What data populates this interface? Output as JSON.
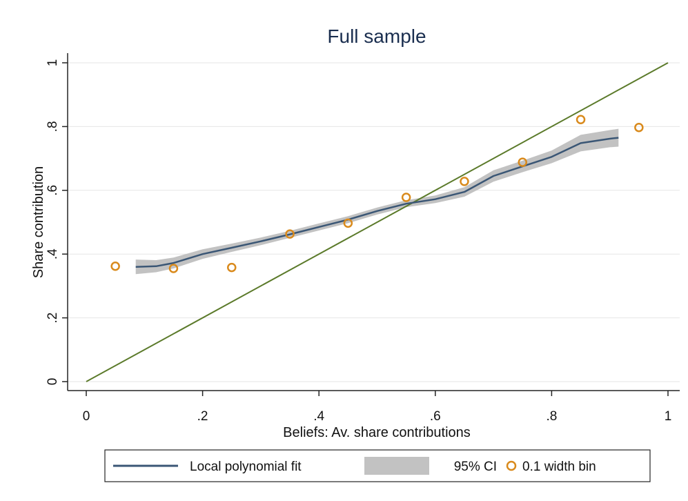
{
  "figure_label": "g",
  "chart_data": {
    "type": "line",
    "title": "Full sample",
    "xlabel": "Beliefs: Av. share contributions",
    "ylabel": "Share contribution",
    "xlim": [
      0,
      1
    ],
    "ylim": [
      0,
      1
    ],
    "xticks": [
      0,
      0.2,
      0.4,
      0.6,
      0.8,
      1
    ],
    "xtick_labels": [
      "0",
      ".2",
      ".4",
      ".6",
      ".8",
      "1"
    ],
    "yticks": [
      0,
      0.2,
      0.4,
      0.6,
      0.8,
      1
    ],
    "ytick_labels": [
      "0",
      ".2",
      ".4",
      ".6",
      ".8",
      "1"
    ],
    "grid": "horizontal",
    "legend_position": "bottom",
    "colors": {
      "fit": "#3a5675",
      "ci": "#c2c2c2",
      "bins": "#d98a1c",
      "diagonal": "#5b7a2a"
    },
    "series": [
      {
        "name": "Local polynomial fit",
        "kind": "line",
        "x": [
          0.085,
          0.12,
          0.15,
          0.2,
          0.25,
          0.3,
          0.35,
          0.4,
          0.45,
          0.5,
          0.55,
          0.6,
          0.65,
          0.7,
          0.75,
          0.8,
          0.85,
          0.9,
          0.915
        ],
        "y": [
          0.36,
          0.362,
          0.372,
          0.4,
          0.42,
          0.44,
          0.462,
          0.485,
          0.508,
          0.535,
          0.558,
          0.572,
          0.595,
          0.645,
          0.675,
          0.705,
          0.748,
          0.762,
          0.765
        ]
      },
      {
        "name": "95% CI",
        "kind": "band",
        "x": [
          0.085,
          0.12,
          0.15,
          0.2,
          0.25,
          0.3,
          0.35,
          0.4,
          0.45,
          0.5,
          0.55,
          0.6,
          0.65,
          0.7,
          0.75,
          0.8,
          0.85,
          0.9,
          0.915
        ],
        "lower": [
          0.337,
          0.343,
          0.355,
          0.385,
          0.407,
          0.428,
          0.451,
          0.474,
          0.497,
          0.524,
          0.547,
          0.56,
          0.58,
          0.627,
          0.657,
          0.685,
          0.722,
          0.735,
          0.737
        ],
        "upper": [
          0.383,
          0.381,
          0.389,
          0.415,
          0.433,
          0.452,
          0.473,
          0.496,
          0.519,
          0.546,
          0.569,
          0.584,
          0.61,
          0.663,
          0.693,
          0.725,
          0.774,
          0.789,
          0.793
        ]
      },
      {
        "name": "0.1 width bin",
        "kind": "scatter",
        "x": [
          0.05,
          0.15,
          0.25,
          0.35,
          0.45,
          0.55,
          0.65,
          0.75,
          0.85,
          0.95
        ],
        "y": [
          0.362,
          0.355,
          0.358,
          0.463,
          0.497,
          0.578,
          0.628,
          0.688,
          0.822,
          0.797
        ]
      },
      {
        "kind": "line",
        "x": [
          0,
          1
        ],
        "y": [
          0,
          1
        ]
      }
    ]
  }
}
